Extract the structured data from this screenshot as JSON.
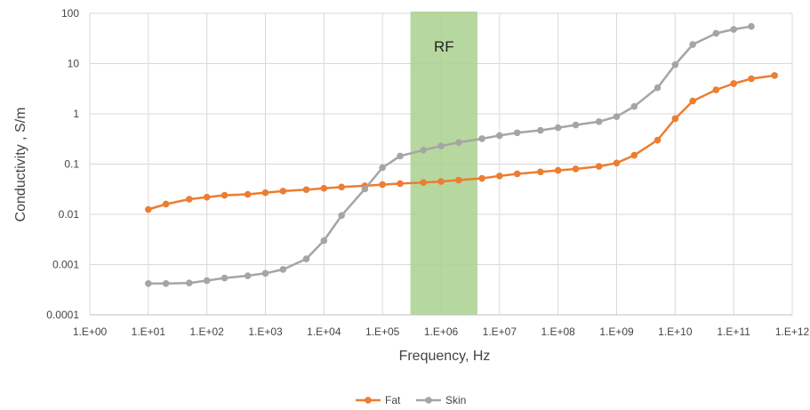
{
  "chart_data": {
    "type": "line",
    "xlabel": "Frequency, Hz",
    "ylabel": "Conductivity , S/m",
    "xscale": "log",
    "yscale": "log",
    "xlim": [
      1,
      1000000000000
    ],
    "ylim": [
      0.0001,
      100
    ],
    "grid": true,
    "legend_position": "bottom",
    "x_tick_labels": [
      "1.E+00",
      "1.E+01",
      "1.E+02",
      "1.E+03",
      "1.E+04",
      "1.E+05",
      "1.E+06",
      "1.E+07",
      "1.E+08",
      "1.E+09",
      "1.E+10",
      "1.E+11",
      "1.E+12"
    ],
    "y_tick_labels": [
      "0.0001",
      "0.001",
      "0.01",
      "0.1",
      "1",
      "10",
      "100"
    ],
    "band": {
      "label": "RF",
      "x_from": 300000,
      "x_to": 4200000,
      "color": "#a9d18e"
    },
    "series": [
      {
        "name": "Fat",
        "color": "#ed7d31",
        "points": [
          [
            10,
            0.0125
          ],
          [
            20,
            0.016
          ],
          [
            50,
            0.02
          ],
          [
            100,
            0.022
          ],
          [
            200,
            0.024
          ],
          [
            500,
            0.025
          ],
          [
            1000,
            0.027
          ],
          [
            2000,
            0.029
          ],
          [
            5000,
            0.031
          ],
          [
            10000,
            0.033
          ],
          [
            20000,
            0.035
          ],
          [
            50000,
            0.037
          ],
          [
            100000,
            0.039
          ],
          [
            200000,
            0.041
          ],
          [
            500000,
            0.043
          ],
          [
            1000000,
            0.045
          ],
          [
            2000000,
            0.048
          ],
          [
            5000000,
            0.052
          ],
          [
            10000000,
            0.058
          ],
          [
            20000000,
            0.064
          ],
          [
            50000000,
            0.07
          ],
          [
            100000000,
            0.075
          ],
          [
            200000000,
            0.08
          ],
          [
            500000000,
            0.09
          ],
          [
            1000000000,
            0.105
          ],
          [
            2000000000,
            0.15
          ],
          [
            5000000000,
            0.3
          ],
          [
            10000000000,
            0.8
          ],
          [
            20000000000,
            1.8
          ],
          [
            50000000000,
            3.0
          ],
          [
            100000000000,
            4.0
          ],
          [
            200000000000,
            5.0
          ],
          [
            500000000000,
            5.8
          ]
        ]
      },
      {
        "name": "Skin",
        "color": "#a5a5a5",
        "points": [
          [
            10,
            0.00042
          ],
          [
            20,
            0.00042
          ],
          [
            50,
            0.00043
          ],
          [
            100,
            0.00048
          ],
          [
            200,
            0.00054
          ],
          [
            500,
            0.0006
          ],
          [
            1000,
            0.00067
          ],
          [
            2000,
            0.0008
          ],
          [
            5000,
            0.0013
          ],
          [
            10000,
            0.003
          ],
          [
            20000,
            0.0095
          ],
          [
            50000,
            0.032
          ],
          [
            100000,
            0.085
          ],
          [
            200000,
            0.145
          ],
          [
            500000,
            0.19
          ],
          [
            1000000,
            0.23
          ],
          [
            2000000,
            0.27
          ],
          [
            5000000,
            0.32
          ],
          [
            10000000,
            0.37
          ],
          [
            20000000,
            0.42
          ],
          [
            50000000,
            0.47
          ],
          [
            100000000,
            0.53
          ],
          [
            200000000,
            0.6
          ],
          [
            500000000,
            0.7
          ],
          [
            1000000000,
            0.88
          ],
          [
            2000000000,
            1.4
          ],
          [
            5000000000,
            3.3
          ],
          [
            10000000000,
            9.5
          ],
          [
            20000000000,
            24
          ],
          [
            50000000000,
            40
          ],
          [
            100000000000,
            48
          ],
          [
            200000000000,
            55
          ]
        ]
      }
    ]
  }
}
